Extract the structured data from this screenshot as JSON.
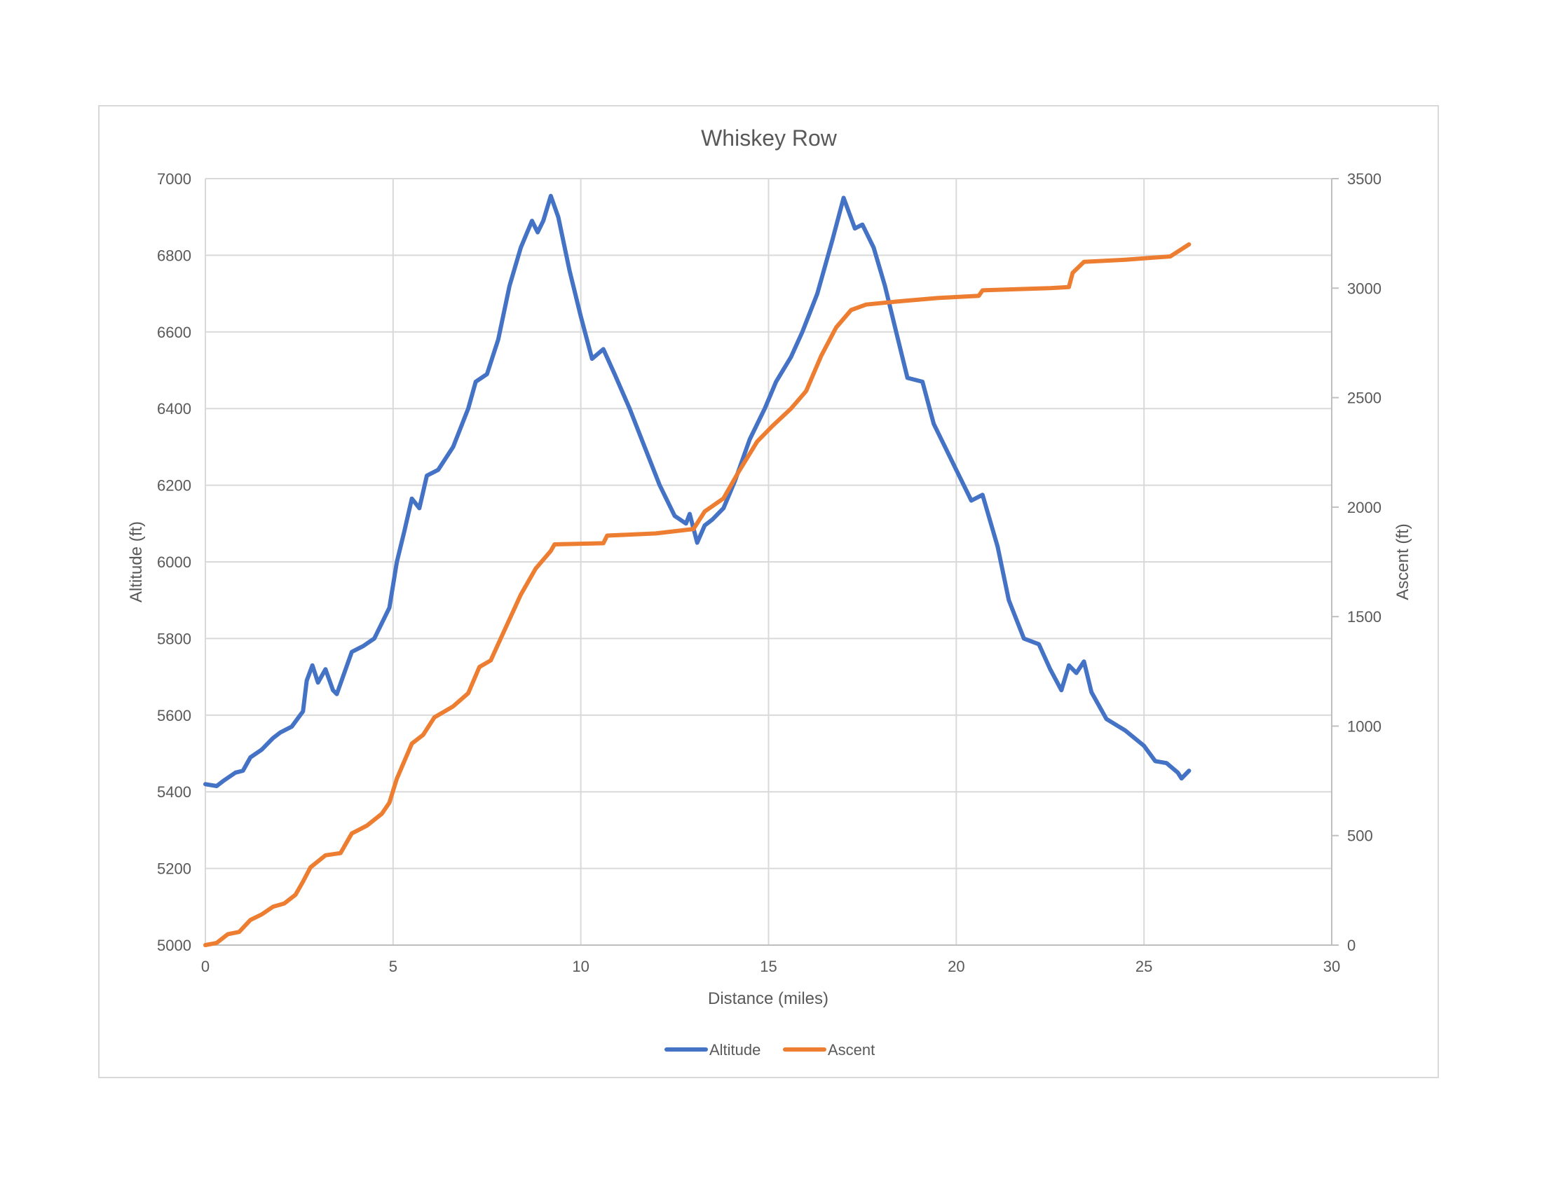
{
  "chart_data": {
    "type": "line",
    "title": "Whiskey Row",
    "xlabel": "Distance (miles)",
    "ylabel_left": "Altitude (ft)",
    "ylabel_right": "Ascent (ft)",
    "xlim": [
      0,
      30
    ],
    "ylim_left": [
      5000,
      7000
    ],
    "ylim_right": [
      0,
      3500
    ],
    "x_ticks": [
      0,
      5,
      10,
      15,
      20,
      25,
      30
    ],
    "y_left_ticks": [
      5000,
      5200,
      5400,
      5600,
      5800,
      6000,
      6200,
      6400,
      6600,
      6800,
      7000
    ],
    "y_right_ticks": [
      0,
      500,
      1000,
      1500,
      2000,
      2500,
      3000,
      3500
    ],
    "grid": true,
    "legend_position": "bottom",
    "series": [
      {
        "name": "Altitude",
        "axis": "left",
        "color": "#4472C4",
        "points": [
          [
            0,
            5420
          ],
          [
            0.3,
            5415
          ],
          [
            0.5,
            5430
          ],
          [
            0.8,
            5450
          ],
          [
            1.0,
            5455
          ],
          [
            1.2,
            5490
          ],
          [
            1.5,
            5510
          ],
          [
            1.8,
            5540
          ],
          [
            2.0,
            5555
          ],
          [
            2.3,
            5570
          ],
          [
            2.6,
            5610
          ],
          [
            2.7,
            5690
          ],
          [
            2.85,
            5730
          ],
          [
            3.0,
            5685
          ],
          [
            3.2,
            5720
          ],
          [
            3.4,
            5665
          ],
          [
            3.5,
            5655
          ],
          [
            3.7,
            5710
          ],
          [
            3.9,
            5765
          ],
          [
            4.2,
            5780
          ],
          [
            4.5,
            5800
          ],
          [
            4.9,
            5880
          ],
          [
            5.1,
            6000
          ],
          [
            5.3,
            6080
          ],
          [
            5.5,
            6165
          ],
          [
            5.7,
            6140
          ],
          [
            5.9,
            6225
          ],
          [
            6.2,
            6240
          ],
          [
            6.6,
            6300
          ],
          [
            7.0,
            6400
          ],
          [
            7.2,
            6470
          ],
          [
            7.5,
            6490
          ],
          [
            7.8,
            6580
          ],
          [
            8.1,
            6720
          ],
          [
            8.4,
            6820
          ],
          [
            8.7,
            6890
          ],
          [
            8.85,
            6860
          ],
          [
            9.0,
            6890
          ],
          [
            9.2,
            6955
          ],
          [
            9.4,
            6900
          ],
          [
            9.7,
            6760
          ],
          [
            10.0,
            6640
          ],
          [
            10.3,
            6530
          ],
          [
            10.6,
            6555
          ],
          [
            10.9,
            6490
          ],
          [
            11.3,
            6400
          ],
          [
            11.7,
            6300
          ],
          [
            12.1,
            6200
          ],
          [
            12.5,
            6120
          ],
          [
            12.8,
            6100
          ],
          [
            12.9,
            6125
          ],
          [
            13.1,
            6050
          ],
          [
            13.3,
            6095
          ],
          [
            13.5,
            6110
          ],
          [
            13.8,
            6140
          ],
          [
            14.1,
            6210
          ],
          [
            14.5,
            6320
          ],
          [
            14.9,
            6400
          ],
          [
            15.2,
            6470
          ],
          [
            15.6,
            6535
          ],
          [
            15.9,
            6600
          ],
          [
            16.3,
            6700
          ],
          [
            16.7,
            6840
          ],
          [
            17.0,
            6950
          ],
          [
            17.3,
            6870
          ],
          [
            17.5,
            6880
          ],
          [
            17.8,
            6820
          ],
          [
            18.1,
            6720
          ],
          [
            18.4,
            6600
          ],
          [
            18.7,
            6480
          ],
          [
            19.1,
            6470
          ],
          [
            19.4,
            6360
          ],
          [
            19.7,
            6300
          ],
          [
            20.0,
            6240
          ],
          [
            20.4,
            6160
          ],
          [
            20.7,
            6175
          ],
          [
            21.1,
            6040
          ],
          [
            21.4,
            5900
          ],
          [
            21.8,
            5800
          ],
          [
            22.2,
            5785
          ],
          [
            22.5,
            5720
          ],
          [
            22.8,
            5665
          ],
          [
            23.0,
            5730
          ],
          [
            23.2,
            5710
          ],
          [
            23.4,
            5740
          ],
          [
            23.6,
            5660
          ],
          [
            24.0,
            5590
          ],
          [
            24.5,
            5560
          ],
          [
            25.0,
            5520
          ],
          [
            25.3,
            5480
          ],
          [
            25.6,
            5475
          ],
          [
            25.9,
            5450
          ],
          [
            26.0,
            5435
          ],
          [
            26.2,
            5455
          ]
        ]
      },
      {
        "name": "Ascent",
        "axis": "right",
        "color": "#ED7D31",
        "points": [
          [
            0,
            0
          ],
          [
            0.3,
            10
          ],
          [
            0.6,
            50
          ],
          [
            0.9,
            60
          ],
          [
            1.2,
            115
          ],
          [
            1.5,
            140
          ],
          [
            1.8,
            175
          ],
          [
            2.1,
            190
          ],
          [
            2.4,
            230
          ],
          [
            2.6,
            290
          ],
          [
            2.8,
            355
          ],
          [
            3.2,
            410
          ],
          [
            3.6,
            420
          ],
          [
            3.9,
            510
          ],
          [
            4.3,
            545
          ],
          [
            4.7,
            600
          ],
          [
            4.9,
            650
          ],
          [
            5.1,
            760
          ],
          [
            5.5,
            920
          ],
          [
            5.8,
            960
          ],
          [
            6.1,
            1040
          ],
          [
            6.6,
            1090
          ],
          [
            7.0,
            1150
          ],
          [
            7.3,
            1270
          ],
          [
            7.6,
            1300
          ],
          [
            8.0,
            1450
          ],
          [
            8.4,
            1600
          ],
          [
            8.8,
            1720
          ],
          [
            9.2,
            1800
          ],
          [
            9.3,
            1830
          ],
          [
            10.6,
            1835
          ],
          [
            10.7,
            1870
          ],
          [
            12.0,
            1880
          ],
          [
            13.0,
            1900
          ],
          [
            13.3,
            1980
          ],
          [
            13.8,
            2040
          ],
          [
            14.2,
            2160
          ],
          [
            14.7,
            2300
          ],
          [
            15.1,
            2370
          ],
          [
            15.6,
            2450
          ],
          [
            16.0,
            2530
          ],
          [
            16.4,
            2690
          ],
          [
            16.8,
            2820
          ],
          [
            17.2,
            2900
          ],
          [
            17.6,
            2925
          ],
          [
            18.5,
            2940
          ],
          [
            19.5,
            2955
          ],
          [
            20.6,
            2965
          ],
          [
            20.7,
            2990
          ],
          [
            22.5,
            3000
          ],
          [
            23.0,
            3005
          ],
          [
            23.1,
            3070
          ],
          [
            23.4,
            3120
          ],
          [
            24.5,
            3130
          ],
          [
            25.7,
            3145
          ],
          [
            26.2,
            3200
          ]
        ]
      }
    ]
  },
  "legend": {
    "altitude_label": "Altitude",
    "ascent_label": "Ascent"
  }
}
